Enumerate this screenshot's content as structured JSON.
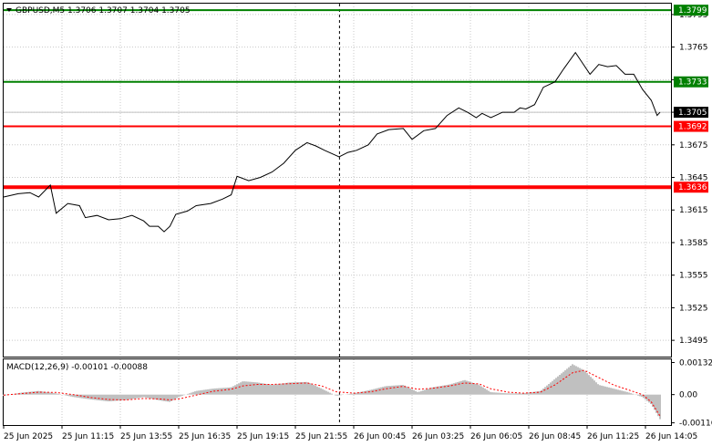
{
  "chart_data": [
    {
      "type": "line",
      "title": "GBPUSD,M5  1.3706 1.3707 1.3704 1.3705",
      "symbol": "GBPUSD",
      "timeframe": "M5",
      "ohlc": {
        "open": "1.3706",
        "high": "1.3707",
        "low": "1.3704",
        "close": "1.3705"
      },
      "price_range": [
        1.348,
        1.3805
      ],
      "price_ticks": [
        "1.3795",
        "1.3765",
        "1.3735",
        "1.3705",
        "1.3675",
        "1.3645",
        "1.3615",
        "1.3585",
        "1.3555",
        "1.3525",
        "1.3495"
      ],
      "time_labels": [
        "25 Jun 2025",
        "25 Jun 11:15",
        "25 Jun 13:55",
        "25 Jun 16:35",
        "25 Jun 19:15",
        "25 Jun 21:55",
        "26 Jun 00:45",
        "26 Jun 03:25",
        "26 Jun 06:05",
        "26 Jun 08:45",
        "26 Jun 11:25",
        "26 Jun 14:05"
      ],
      "grid": true,
      "vertical_marker_index": 5.6,
      "current_price": {
        "value": 1.3705,
        "label": "1.3705"
      },
      "levels": [
        {
          "value": 1.3799,
          "label": "1.3799",
          "color": "#008000"
        },
        {
          "value": 1.3733,
          "label": "1.3733",
          "color": "#008000"
        },
        {
          "value": 1.3692,
          "label": "1.3692",
          "color": "#ff0000"
        },
        {
          "value": 1.3636,
          "label": "1.3636",
          "color": "#ff0000"
        }
      ],
      "line_color": "#000000",
      "series": [
        {
          "values": [
            [
              0,
              1.3627
            ],
            [
              0.25,
              1.363
            ],
            [
              0.45,
              1.3631
            ],
            [
              0.6,
              1.3627
            ],
            [
              0.8,
              1.3638
            ],
            [
              0.9,
              1.3612
            ],
            [
              1.1,
              1.3621
            ],
            [
              1.3,
              1.3619
            ],
            [
              1.4,
              1.3608
            ],
            [
              1.6,
              1.361
            ],
            [
              1.8,
              1.3606
            ],
            [
              2.0,
              1.3607
            ],
            [
              2.2,
              1.361
            ],
            [
              2.4,
              1.3605
            ],
            [
              2.5,
              1.36
            ],
            [
              2.65,
              1.36
            ],
            [
              2.75,
              1.3595
            ],
            [
              2.85,
              1.36
            ],
            [
              2.95,
              1.3611
            ],
            [
              3.15,
              1.3614
            ],
            [
              3.3,
              1.3619
            ],
            [
              3.55,
              1.3621
            ],
            [
              3.75,
              1.3625
            ],
            [
              3.9,
              1.3629
            ],
            [
              4.0,
              1.3646
            ],
            [
              4.2,
              1.3642
            ],
            [
              4.4,
              1.3645
            ],
            [
              4.6,
              1.365
            ],
            [
              4.8,
              1.3658
            ],
            [
              5.0,
              1.367
            ],
            [
              5.2,
              1.3677
            ],
            [
              5.35,
              1.3674
            ],
            [
              5.5,
              1.367
            ],
            [
              5.75,
              1.3664
            ],
            [
              5.9,
              1.3668
            ],
            [
              6.05,
              1.367
            ],
            [
              6.25,
              1.3675
            ],
            [
              6.4,
              1.3685
            ],
            [
              6.6,
              1.3689
            ],
            [
              6.85,
              1.369
            ],
            [
              7.0,
              1.368
            ],
            [
              7.2,
              1.3688
            ],
            [
              7.4,
              1.369
            ],
            [
              7.6,
              1.3702
            ],
            [
              7.8,
              1.3709
            ],
            [
              7.95,
              1.3705
            ],
            [
              8.1,
              1.37
            ],
            [
              8.2,
              1.3704
            ],
            [
              8.35,
              1.37
            ],
            [
              8.55,
              1.3705
            ],
            [
              8.75,
              1.3705
            ],
            [
              8.85,
              1.3709
            ],
            [
              8.95,
              1.3708
            ],
            [
              9.1,
              1.3712
            ],
            [
              9.25,
              1.3728
            ],
            [
              9.45,
              1.3733
            ],
            [
              9.6,
              1.3745
            ],
            [
              9.8,
              1.376
            ],
            [
              9.9,
              1.3752
            ],
            [
              10.05,
              1.374
            ],
            [
              10.2,
              1.3749
            ],
            [
              10.35,
              1.3747
            ],
            [
              10.5,
              1.3748
            ],
            [
              10.65,
              1.374
            ],
            [
              10.8,
              1.374
            ],
            [
              10.95,
              1.3726
            ],
            [
              11.1,
              1.3716
            ],
            [
              11.2,
              1.3702
            ],
            [
              11.25,
              1.3705
            ]
          ]
        }
      ]
    },
    {
      "type": "area",
      "title": "MACD(12,26,9) -0.00101 -0.00088",
      "value_range": [
        -0.00125,
        0.00145
      ],
      "ticks": [
        "0.00132",
        "0.00",
        "-0.00116"
      ],
      "histogram_color": "#c0c0c0",
      "signal_color": "#ff0000",
      "series": [
        {
          "name": "MACD",
          "values": [
            [
              0,
              -5e-05
            ],
            [
              0.3,
              8e-05
            ],
            [
              0.6,
              0.00015
            ],
            [
              0.9,
              5e-05
            ],
            [
              1.2,
              -0.0001
            ],
            [
              1.5,
              -0.0002
            ],
            [
              1.8,
              -0.00028
            ],
            [
              2.1,
              -0.00022
            ],
            [
              2.4,
              -0.0001
            ],
            [
              2.7,
              -0.00025
            ],
            [
              2.85,
              -0.0003
            ],
            [
              3.0,
              -0.0001
            ],
            [
              3.3,
              0.00015
            ],
            [
              3.6,
              0.00025
            ],
            [
              3.9,
              0.0003
            ],
            [
              4.1,
              0.00055
            ],
            [
              4.35,
              0.0005
            ],
            [
              4.6,
              0.0004
            ],
            [
              4.9,
              0.0005
            ],
            [
              5.2,
              0.00052
            ],
            [
              5.45,
              0.00025
            ],
            [
              5.7,
              -5e-05
            ],
            [
              6.0,
              5e-05
            ],
            [
              6.3,
              0.0002
            ],
            [
              6.55,
              0.00035
            ],
            [
              6.85,
              0.0004
            ],
            [
              7.1,
              0.0001
            ],
            [
              7.35,
              0.0003
            ],
            [
              7.65,
              0.00042
            ],
            [
              7.9,
              0.0006
            ],
            [
              8.15,
              0.0004
            ],
            [
              8.35,
              0.0001
            ],
            [
              8.65,
              5e-05
            ],
            [
              8.9,
              5e-05
            ],
            [
              9.2,
              0.00015
            ],
            [
              9.45,
              0.00065
            ],
            [
              9.75,
              0.00125
            ],
            [
              9.95,
              0.001
            ],
            [
              10.2,
              0.0004
            ],
            [
              10.45,
              0.00025
            ],
            [
              10.7,
              0.0001
            ],
            [
              10.95,
              -0.0001
            ],
            [
              11.1,
              -0.0004
            ],
            [
              11.25,
              -0.00101
            ]
          ]
        },
        {
          "name": "Signal",
          "values": [
            [
              0,
              -2e-05
            ],
            [
              0.3,
              4e-05
            ],
            [
              0.6,
              0.0001
            ],
            [
              0.9,
              9e-05
            ],
            [
              1.2,
              0.0
            ],
            [
              1.5,
              -0.00012
            ],
            [
              1.8,
              -0.0002
            ],
            [
              2.1,
              -0.00022
            ],
            [
              2.4,
              -0.00016
            ],
            [
              2.7,
              -0.00018
            ],
            [
              2.85,
              -0.00022
            ],
            [
              3.0,
              -0.00018
            ],
            [
              3.3,
              -2e-05
            ],
            [
              3.6,
              0.00014
            ],
            [
              3.9,
              0.00022
            ],
            [
              4.1,
              0.00036
            ],
            [
              4.35,
              0.00042
            ],
            [
              4.6,
              0.00042
            ],
            [
              4.9,
              0.00045
            ],
            [
              5.2,
              0.00048
            ],
            [
              5.45,
              0.00036
            ],
            [
              5.7,
              0.00012
            ],
            [
              6.0,
              6e-05
            ],
            [
              6.3,
              0.00012
            ],
            [
              6.55,
              0.00024
            ],
            [
              6.85,
              0.00034
            ],
            [
              7.1,
              0.00022
            ],
            [
              7.35,
              0.00026
            ],
            [
              7.65,
              0.00036
            ],
            [
              7.9,
              0.00048
            ],
            [
              8.15,
              0.00044
            ],
            [
              8.35,
              0.00024
            ],
            [
              8.65,
              0.0001
            ],
            [
              8.9,
              6e-05
            ],
            [
              9.2,
              0.0001
            ],
            [
              9.45,
              0.0004
            ],
            [
              9.75,
              0.0009
            ],
            [
              9.95,
              0.001
            ],
            [
              10.2,
              0.0007
            ],
            [
              10.45,
              0.0004
            ],
            [
              10.7,
              0.0002
            ],
            [
              10.95,
              0.0
            ],
            [
              11.1,
              -0.0003
            ],
            [
              11.25,
              -0.00088
            ]
          ]
        }
      ]
    }
  ]
}
